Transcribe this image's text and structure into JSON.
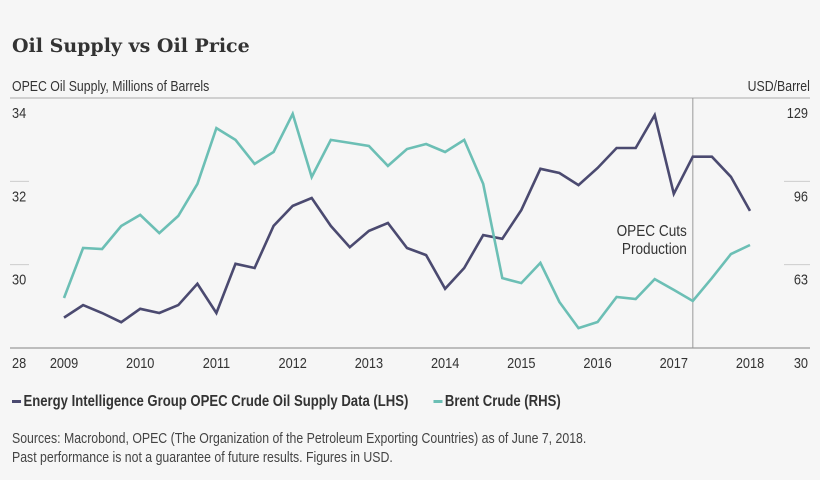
{
  "chart_data": {
    "type": "line",
    "title": "Oil Supply vs Oil Price",
    "ylabel_left": "OPEC Oil Supply, Millions of Barrels",
    "ylabel_right": "USD/Barrel",
    "x_ticks": [
      "2009",
      "2010",
      "2011",
      "2012",
      "2013",
      "2014",
      "2015",
      "2016",
      "2017",
      "2018"
    ],
    "xlim": [
      2009,
      2018
    ],
    "ylim_left": [
      28,
      34
    ],
    "yticks_left": [
      "28",
      "30",
      "32",
      "34"
    ],
    "ylim_right": [
      30,
      129
    ],
    "yticks_right": [
      "30",
      "63",
      "96",
      "129"
    ],
    "grid": "horizontal",
    "legend_position": "bottom",
    "x": [
      2009,
      2009.25,
      2009.5,
      2009.75,
      2010,
      2010.25,
      2010.5,
      2010.75,
      2011,
      2011.25,
      2011.5,
      2011.75,
      2012,
      2012.25,
      2012.5,
      2012.75,
      2013,
      2013.25,
      2013.5,
      2013.75,
      2014,
      2014.25,
      2014.5,
      2014.75,
      2015,
      2015.25,
      2015.5,
      2015.75,
      2016,
      2016.25,
      2016.5,
      2016.75,
      2017,
      2017.25,
      2017.5,
      2017.75,
      2018
    ],
    "series": [
      {
        "name": "Energy Intelligence Group OPEC Crude Oil Supply Data (LHS)",
        "axis": "left",
        "color": "#4b4a70",
        "values": [
          28.73,
          29.03,
          28.84,
          28.62,
          28.94,
          28.84,
          29.03,
          29.54,
          28.84,
          30.02,
          29.92,
          30.93,
          31.41,
          31.6,
          30.93,
          30.42,
          30.81,
          31.0,
          30.4,
          30.23,
          29.42,
          29.92,
          30.71,
          30.62,
          31.31,
          32.3,
          32.2,
          31.91,
          32.32,
          32.8,
          32.8,
          33.59,
          31.7,
          32.59,
          32.59,
          32.11,
          31.29
        ]
      },
      {
        "name": "Brent Crude (RHS)",
        "axis": "right",
        "color": "#6cbfb5",
        "values": [
          49.8,
          69.6,
          69.2,
          78.3,
          82.7,
          75.5,
          82.3,
          95.0,
          117.1,
          112.4,
          102.9,
          107.6,
          122.7,
          97.7,
          112.4,
          111.2,
          110.0,
          102.1,
          108.8,
          110.8,
          107.6,
          112.4,
          95.0,
          57.7,
          55.7,
          63.7,
          48.2,
          37.9,
          40.3,
          50.2,
          49.4,
          57.3,
          53.0,
          48.6,
          57.7,
          67.2,
          70.8
        ]
      }
    ],
    "annotations": [
      {
        "x": 2017.25,
        "text_lines": [
          "OPEC Cuts",
          "Production"
        ]
      }
    ]
  },
  "footer": {
    "line1": "Sources: Macrobond, OPEC (The Organization of the Petroleum Exporting Countries) as of June 7, 2018.",
    "line2": "Past performance is not a guarantee of future results. Figures in USD."
  }
}
